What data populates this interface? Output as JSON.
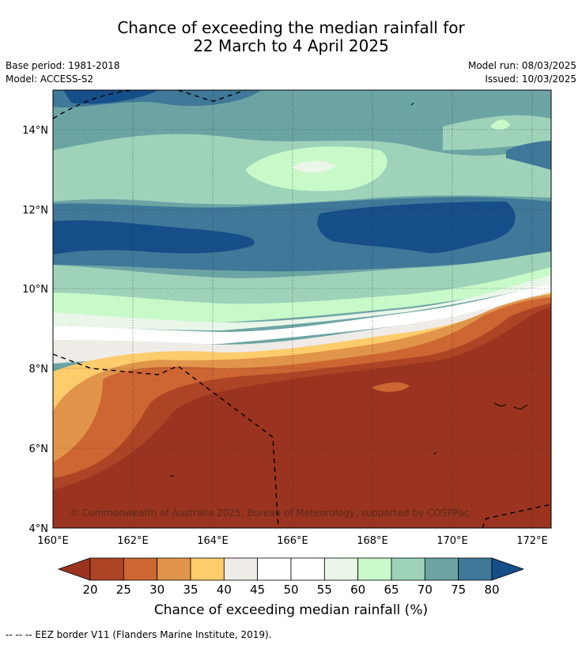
{
  "header": {
    "title_line1": "Chance of exceeding the median rainfall for",
    "title_line2": "22 March to 4 April 2025",
    "base_period": "Base period: 1981-2018",
    "model": "Model: ACCESS-S2",
    "model_run": "Model run: 08/03/2025",
    "issued": "Issued: 10/03/2025"
  },
  "map": {
    "lon_ticks": [
      "160°E",
      "162°E",
      "164°E",
      "166°E",
      "168°E",
      "170°E",
      "172°E"
    ],
    "lat_ticks": [
      "14°N",
      "12°N",
      "10°N",
      "8°N",
      "6°N",
      "4°N"
    ],
    "lon_range": [
      160,
      172.5
    ],
    "lat_range": [
      4,
      15
    ],
    "copyright": "© Commonwealth of Australia 2025, Bureau of Meteorology, supported by COSPPac"
  },
  "colorbar": {
    "ticks": [
      "20",
      "25",
      "30",
      "35",
      "40",
      "45",
      "50",
      "55",
      "60",
      "65",
      "70",
      "75",
      "80"
    ],
    "colors": [
      "#9a3420",
      "#ad4425",
      "#cd6632",
      "#e1954a",
      "#fdcc6b",
      "#efebe7",
      "#ffffff",
      "#ffffff",
      "#e9f6e8",
      "#c8f9c9",
      "#9ed3ba",
      "#6ca4a4",
      "#3f7899",
      "#164e89"
    ],
    "label": "Chance of exceeding median rainfall (%)"
  },
  "footnote": "--  --  -- EEZ border V11 (Flanders Marine Institute, 2019)."
}
